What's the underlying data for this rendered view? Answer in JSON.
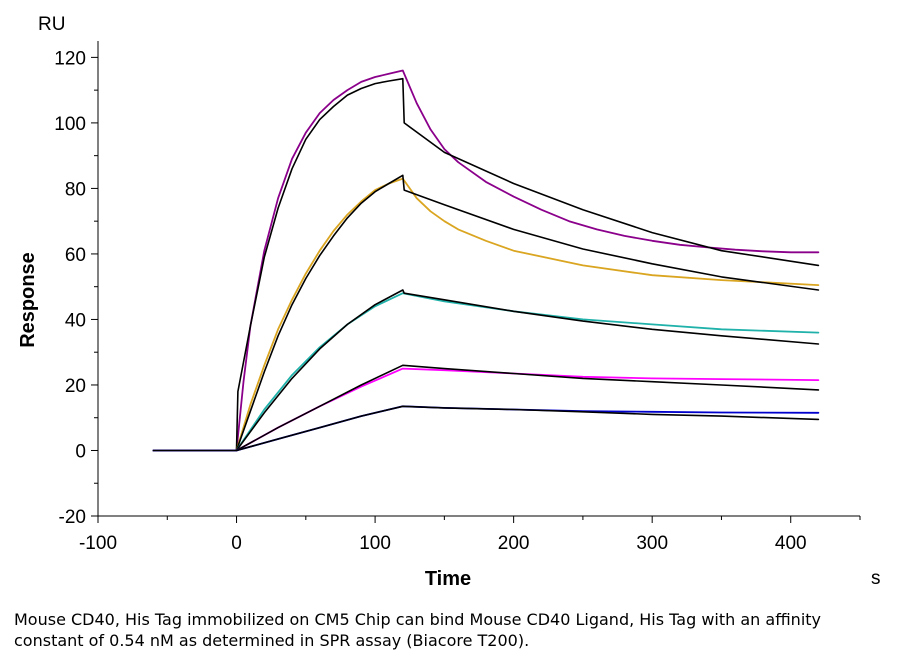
{
  "chart_data": {
    "type": "line",
    "title": "",
    "xlabel": "Time",
    "ylabel": "Response",
    "x_unit": "s",
    "y_unit": "RU",
    "xlim": [
      -100,
      450
    ],
    "ylim": [
      -20,
      125
    ],
    "x_ticks": [
      -100,
      0,
      100,
      200,
      300,
      400
    ],
    "y_ticks": [
      -20,
      0,
      20,
      40,
      60,
      80,
      100,
      120
    ],
    "grid": false,
    "series": [
      {
        "color": "#8B008B",
        "x": [
          -60,
          0,
          5,
          10,
          20,
          30,
          40,
          50,
          60,
          70,
          80,
          90,
          100,
          110,
          120,
          130,
          140,
          150,
          160,
          180,
          200,
          220,
          240,
          260,
          280,
          300,
          320,
          340,
          360,
          380,
          400,
          420
        ],
        "y": [
          0,
          0,
          21,
          38,
          61,
          77,
          89,
          97,
          103,
          107,
          110,
          112.5,
          114,
          115,
          116,
          106,
          98,
          92,
          88,
          82,
          77.5,
          73.5,
          70,
          67.5,
          65.5,
          64,
          62.8,
          62,
          61.3,
          60.8,
          60.5,
          60.5
        ]
      },
      {
        "color": "#000000",
        "x": [
          -60,
          0,
          1,
          10,
          20,
          30,
          40,
          50,
          60,
          70,
          80,
          90,
          100,
          110,
          120,
          121,
          150,
          200,
          250,
          300,
          350,
          420
        ],
        "y": [
          0,
          0,
          18,
          38,
          59,
          74,
          86,
          95,
          101,
          105,
          108.5,
          110.5,
          112,
          112.8,
          113.5,
          100,
          91,
          81.5,
          73.5,
          66.5,
          61,
          56.5
        ]
      },
      {
        "color": "#DAA520",
        "x": [
          -60,
          0,
          10,
          20,
          30,
          40,
          50,
          60,
          70,
          80,
          90,
          100,
          110,
          120,
          130,
          140,
          150,
          160,
          180,
          200,
          250,
          300,
          350,
          420
        ],
        "y": [
          0,
          0,
          14,
          26,
          37,
          46,
          54,
          61,
          67,
          72,
          76,
          79.5,
          81.5,
          83,
          77,
          73,
          70,
          67.5,
          64,
          61,
          56.5,
          53.5,
          52,
          50.5
        ]
      },
      {
        "color": "#000000",
        "x": [
          -60,
          0,
          10,
          20,
          30,
          40,
          50,
          60,
          70,
          80,
          90,
          100,
          110,
          120,
          121,
          150,
          200,
          250,
          300,
          350,
          420
        ],
        "y": [
          0,
          0,
          12,
          24,
          35,
          44.5,
          52.5,
          59.5,
          65.5,
          71,
          75.5,
          79,
          81.5,
          84,
          79.5,
          75,
          67.5,
          61.5,
          57,
          53,
          49
        ]
      },
      {
        "color": "#20B2AA",
        "x": [
          -60,
          0,
          20,
          40,
          60,
          80,
          100,
          120,
          150,
          200,
          250,
          300,
          350,
          420
        ],
        "y": [
          0,
          0,
          12.5,
          23,
          31.5,
          38.5,
          44,
          48,
          45.5,
          42.5,
          40,
          38.5,
          37,
          36
        ]
      },
      {
        "color": "#000000",
        "x": [
          -60,
          0,
          20,
          40,
          60,
          80,
          100,
          120,
          121,
          150,
          200,
          250,
          300,
          350,
          420
        ],
        "y": [
          0,
          0,
          11.5,
          22,
          31,
          38.5,
          44.5,
          49,
          48,
          46,
          42.5,
          39.5,
          37,
          35,
          32.5
        ]
      },
      {
        "color": "#FF00FF",
        "x": [
          -60,
          0,
          30,
          60,
          90,
          120,
          150,
          200,
          250,
          300,
          350,
          420
        ],
        "y": [
          0,
          0,
          7,
          13.5,
          19.5,
          25,
          24.5,
          23.5,
          22.5,
          22,
          21.8,
          21.5
        ]
      },
      {
        "color": "#000000",
        "x": [
          -60,
          0,
          30,
          60,
          90,
          120,
          150,
          200,
          250,
          300,
          350,
          420
        ],
        "y": [
          0,
          0,
          7,
          13.5,
          20,
          26,
          25,
          23.5,
          22,
          21,
          20,
          18.5
        ]
      },
      {
        "color": "#0000CD",
        "x": [
          -60,
          0,
          30,
          60,
          90,
          120,
          150,
          200,
          250,
          300,
          350,
          420
        ],
        "y": [
          0,
          0,
          3.5,
          7,
          10.5,
          13.5,
          13,
          12.5,
          12,
          11.8,
          11.6,
          11.5
        ]
      },
      {
        "color": "#000000",
        "x": [
          -60,
          0,
          30,
          60,
          90,
          120,
          150,
          200,
          250,
          300,
          350,
          420
        ],
        "y": [
          0,
          0,
          3.5,
          7,
          10.5,
          13.5,
          13,
          12.5,
          11.8,
          11,
          10.5,
          9.5
        ]
      }
    ]
  },
  "caption": "Mouse CD40, His Tag immobilized on CM5 Chip can bind Mouse CD40 Ligand, His Tag with an affinity constant of 0.54 nM as determined in SPR assay (Biacore T200)."
}
